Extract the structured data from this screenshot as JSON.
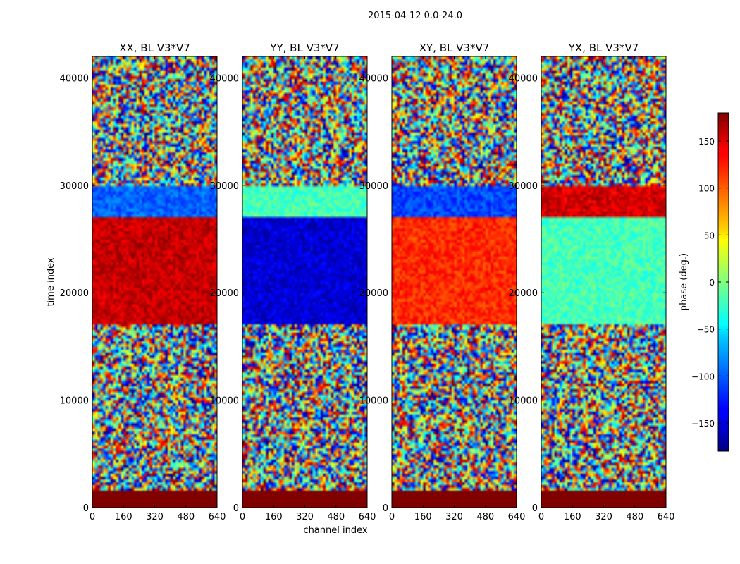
{
  "figure_title": "2015-04-12 0.0-24.0",
  "chart_data": {
    "type": "heatmap",
    "title": "2015-04-12 0.0-24.0",
    "xlabel": "channel index",
    "ylabel": "time index",
    "xlim": [
      0,
      640
    ],
    "ylim": [
      0,
      42000
    ],
    "x_ticks": [
      0,
      160,
      320,
      480,
      640
    ],
    "y_ticks": [
      0,
      10000,
      20000,
      30000,
      40000
    ],
    "x_tick_labels": [
      "0",
      "160",
      "320",
      "480",
      "640"
    ],
    "y_tick_labels": [
      "0",
      "10000",
      "20000",
      "30000",
      "40000"
    ],
    "panels": [
      {
        "title": "XX, BL V3*V7",
        "polarization": "XX",
        "mean_phase_17000_27000": 155,
        "mean_phase_27000_30000": -100
      },
      {
        "title": "YY, BL V3*V7",
        "polarization": "YY",
        "mean_phase_17000_27000": -150,
        "mean_phase_27000_30000": -20
      },
      {
        "title": "XY, BL V3*V7",
        "polarization": "XY",
        "mean_phase_17000_27000": 120,
        "mean_phase_27000_30000": -110
      },
      {
        "title": "YX, BL V3*V7",
        "polarization": "YX",
        "mean_phase_17000_27000": -20,
        "mean_phase_27000_30000": 150
      }
    ],
    "colorbar": {
      "label": "phase (deg.)",
      "range": [
        -180,
        180
      ],
      "ticks": [
        -150,
        -100,
        -50,
        0,
        50,
        100,
        150
      ],
      "tick_labels": [
        "−150",
        "−100",
        "−50",
        "0",
        "50",
        "100",
        "150"
      ],
      "colormap": "jet"
    },
    "flagged_rows_0_to_1500": 180
  }
}
